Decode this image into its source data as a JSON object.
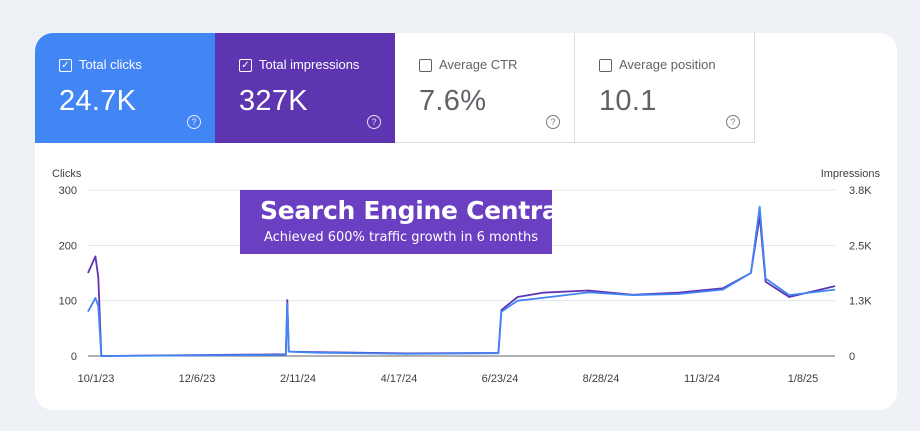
{
  "metrics": [
    {
      "label": "Total clicks",
      "value": "24.7K",
      "checked": true,
      "color": "#4285f4"
    },
    {
      "label": "Total impressions",
      "value": "327K",
      "checked": true,
      "color": "#5e35b1"
    },
    {
      "label": "Average CTR",
      "value": "7.6%",
      "checked": false
    },
    {
      "label": "Average position",
      "value": "10.1",
      "checked": false
    }
  ],
  "banner": {
    "title": "Search Engine Central",
    "subtitle": "Achieved 600% traffic growth in 6 months",
    "color": "#6a3fc1"
  },
  "chart_data": {
    "type": "line",
    "left_axis_label": "Clicks",
    "right_axis_label": "Impressions",
    "left_ticks": [
      "300",
      "200",
      "100",
      "0"
    ],
    "right_ticks": [
      "3.8K",
      "2.5K",
      "1.3K",
      "0"
    ],
    "ylim_left": [
      0,
      300
    ],
    "ylim_right": [
      0,
      3800
    ],
    "x_ticks": [
      "10/1/23",
      "12/6/23",
      "2/11/24",
      "4/17/24",
      "6/23/24",
      "8/28/24",
      "11/3/24",
      "1/8/25"
    ],
    "x_range": [
      "2023-09-28",
      "2025-02-15"
    ],
    "grid": true,
    "series": [
      {
        "name": "Total clicks",
        "color": "#4285f4",
        "axis": "left",
        "points": [
          [
            "2023-09-28",
            80
          ],
          [
            "2023-10-03",
            105
          ],
          [
            "2023-10-05",
            90
          ],
          [
            "2023-10-07",
            0
          ],
          [
            "2024-02-09",
            2
          ],
          [
            "2024-02-10",
            95
          ],
          [
            "2024-02-11",
            8
          ],
          [
            "2024-03-01",
            6
          ],
          [
            "2024-05-01",
            4
          ],
          [
            "2024-07-02",
            5
          ],
          [
            "2024-07-04",
            80
          ],
          [
            "2024-07-15",
            100
          ],
          [
            "2024-08-01",
            105
          ],
          [
            "2024-09-01",
            115
          ],
          [
            "2024-10-01",
            110
          ],
          [
            "2024-11-01",
            112
          ],
          [
            "2024-12-01",
            120
          ],
          [
            "2024-12-20",
            150
          ],
          [
            "2024-12-26",
            270
          ],
          [
            "2024-12-30",
            140
          ],
          [
            "2025-01-15",
            110
          ],
          [
            "2025-02-15",
            120
          ]
        ]
      },
      {
        "name": "Total impressions",
        "color": "#5e35b1",
        "axis": "right",
        "points": [
          [
            "2023-09-28",
            1900
          ],
          [
            "2023-10-03",
            2280
          ],
          [
            "2023-10-05",
            1800
          ],
          [
            "2023-10-07",
            0
          ],
          [
            "2024-02-09",
            40
          ],
          [
            "2024-02-10",
            1280
          ],
          [
            "2024-02-11",
            100
          ],
          [
            "2024-03-01",
            90
          ],
          [
            "2024-05-01",
            60
          ],
          [
            "2024-07-02",
            70
          ],
          [
            "2024-07-04",
            1050
          ],
          [
            "2024-07-15",
            1350
          ],
          [
            "2024-08-01",
            1450
          ],
          [
            "2024-09-01",
            1500
          ],
          [
            "2024-10-01",
            1400
          ],
          [
            "2024-11-01",
            1450
          ],
          [
            "2024-12-01",
            1550
          ],
          [
            "2024-12-20",
            1900
          ],
          [
            "2024-12-26",
            3200
          ],
          [
            "2024-12-30",
            1700
          ],
          [
            "2025-01-15",
            1350
          ],
          [
            "2025-02-15",
            1600
          ]
        ]
      }
    ]
  }
}
